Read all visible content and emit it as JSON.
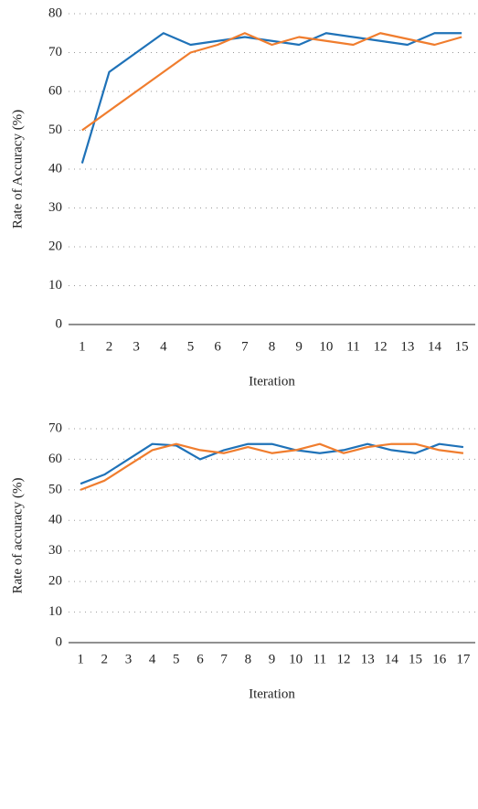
{
  "chart_data": [
    {
      "type": "line",
      "y_label": "Rate of Accuracy (%)",
      "x_label": "Iteration",
      "categories": [
        1,
        2,
        3,
        4,
        5,
        6,
        7,
        8,
        9,
        10,
        11,
        12,
        13,
        14,
        15
      ],
      "series": [
        {
          "color": "#1f72b8",
          "values": [
            41.5,
            65,
            70,
            75,
            72,
            73,
            74,
            73,
            72,
            75,
            74,
            73,
            72,
            75,
            75
          ]
        },
        {
          "color": "#f07d2e",
          "values": [
            50,
            55,
            60,
            65,
            70,
            72,
            75,
            72,
            74,
            73,
            72,
            75,
            73.5,
            72,
            74
          ]
        }
      ],
      "ylim": [
        0,
        80
      ],
      "yticks": [
        0,
        10,
        20,
        30,
        40,
        50,
        60,
        70,
        80
      ],
      "grid": true
    },
    {
      "type": "line",
      "y_label": "Rate of accuracy (%)",
      "x_label": "Iteration",
      "categories": [
        1,
        2,
        3,
        4,
        5,
        6,
        7,
        8,
        9,
        10,
        11,
        12,
        13,
        14,
        15,
        16,
        17
      ],
      "series": [
        {
          "color": "#1f72b8",
          "values": [
            52,
            55,
            60,
            65,
            64.5,
            60,
            63,
            65,
            65,
            63,
            62,
            63,
            65,
            63,
            62,
            65,
            64
          ]
        },
        {
          "color": "#f07d2e",
          "values": [
            50,
            53,
            58,
            63,
            65,
            63,
            62,
            64,
            62,
            63,
            65,
            62,
            64,
            65,
            65,
            63,
            62
          ]
        }
      ],
      "ylim": [
        0,
        70
      ],
      "yticks": [
        0,
        10,
        20,
        30,
        40,
        50,
        60,
        70
      ],
      "grid": true
    }
  ]
}
